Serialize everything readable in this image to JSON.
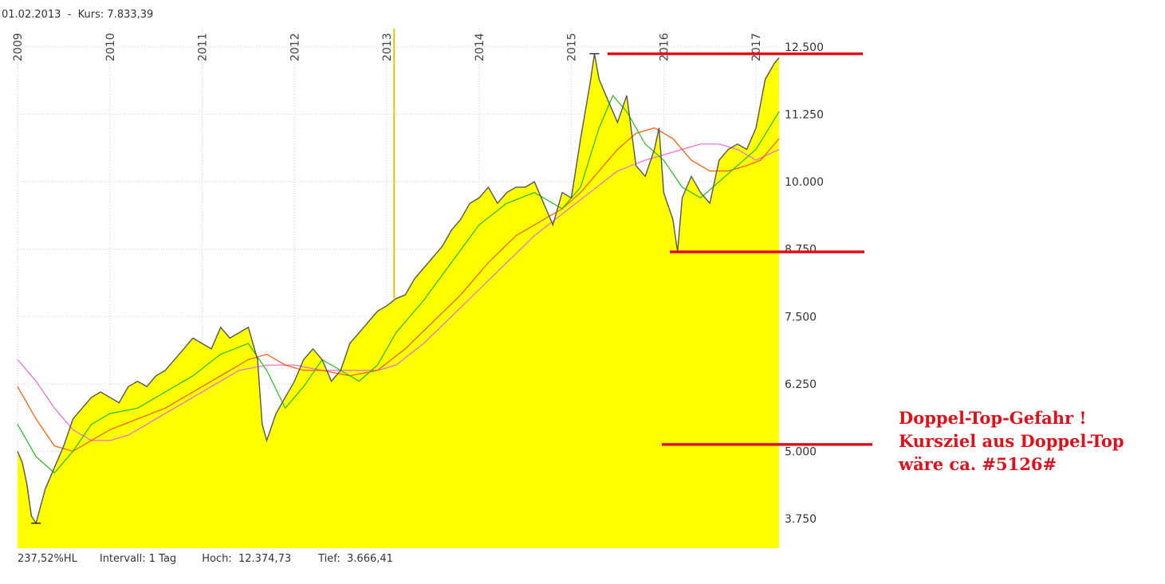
{
  "header": {
    "date": "01.02.2013",
    "separator": "-",
    "price_label": "Kurs: 7.833,39"
  },
  "footer": {
    "range": "237,52%HL",
    "interval": "Intervall: 1 Tag",
    "high": "Hoch:  12.374,73",
    "low": "Tief:  3.666,41"
  },
  "annotation": {
    "line1": "Doppel-Top-Gefahr !",
    "line2": "Kursziel aus Doppel-Top",
    "line3": "wäre ca. #5126#"
  },
  "colors": {
    "area_fill": "#ffff00",
    "price_line": "#555555",
    "ma_short": "#22bb22",
    "ma_mid": "#ff5500",
    "ma_long": "#ee66dd",
    "marker_line": "#e8c400",
    "annotation_lines": "#e0101a"
  },
  "chart_data": {
    "type": "area",
    "x_tick_labels": [
      "2009",
      "2010",
      "2011",
      "2012",
      "2013",
      "2014",
      "2015",
      "2016",
      "2017"
    ],
    "x_tick_years": [
      2009.0,
      2010.0,
      2011.0,
      2012.0,
      2013.0,
      2014.0,
      2015.0,
      2016.0,
      2017.0
    ],
    "y_tick_labels": [
      "12.500",
      "11.250",
      "10.000",
      "8.750",
      "7.500",
      "6.250",
      "5.000",
      "3.750"
    ],
    "y_tick_values": [
      12500,
      11250,
      10000,
      8750,
      7500,
      6250,
      5000,
      3750
    ],
    "xlim": [
      2009.0,
      2017.25
    ],
    "ylim": [
      3200,
      13000
    ],
    "grid": true,
    "marker_date": 2013.08,
    "series": [
      {
        "key": "price",
        "x": [
          2009.0,
          2009.05,
          2009.1,
          2009.15,
          2009.2,
          2009.3,
          2009.4,
          2009.5,
          2009.6,
          2009.7,
          2009.8,
          2009.9,
          2010.0,
          2010.1,
          2010.2,
          2010.3,
          2010.4,
          2010.5,
          2010.6,
          2010.7,
          2010.8,
          2010.9,
          2011.0,
          2011.1,
          2011.2,
          2011.3,
          2011.4,
          2011.5,
          2011.6,
          2011.65,
          2011.7,
          2011.8,
          2011.9,
          2012.0,
          2012.1,
          2012.2,
          2012.3,
          2012.4,
          2012.5,
          2012.6,
          2012.7,
          2012.8,
          2012.9,
          2013.0,
          2013.1,
          2013.2,
          2013.3,
          2013.4,
          2013.5,
          2013.6,
          2013.7,
          2013.8,
          2013.9,
          2014.0,
          2014.1,
          2014.2,
          2014.3,
          2014.4,
          2014.5,
          2014.6,
          2014.7,
          2014.8,
          2014.9,
          2015.0,
          2015.1,
          2015.2,
          2015.25,
          2015.3,
          2015.4,
          2015.5,
          2015.6,
          2015.7,
          2015.8,
          2015.9,
          2015.95,
          2016.0,
          2016.1,
          2016.15,
          2016.2,
          2016.3,
          2016.4,
          2016.5,
          2016.6,
          2016.7,
          2016.8,
          2016.9,
          2017.0,
          2017.1,
          2017.2,
          2017.25
        ],
        "values": [
          5000,
          4800,
          4400,
          3800,
          3666,
          4300,
          4700,
          5100,
          5600,
          5800,
          6000,
          6100,
          6000,
          5900,
          6200,
          6300,
          6200,
          6400,
          6500,
          6700,
          6900,
          7100,
          7000,
          6900,
          7300,
          7100,
          7200,
          7300,
          6700,
          5500,
          5200,
          5700,
          6000,
          6300,
          6700,
          6900,
          6700,
          6300,
          6500,
          7000,
          7200,
          7400,
          7600,
          7700,
          7833,
          7900,
          8200,
          8400,
          8600,
          8800,
          9100,
          9300,
          9600,
          9700,
          9900,
          9600,
          9800,
          9900,
          9900,
          10000,
          9600,
          9200,
          9800,
          9700,
          10800,
          11800,
          12375,
          11900,
          11500,
          11100,
          11600,
          10300,
          10100,
          10600,
          11000,
          9800,
          9300,
          8700,
          9700,
          10100,
          9800,
          9600,
          10400,
          10600,
          10700,
          10600,
          11000,
          11900,
          12200,
          12300
        ]
      },
      {
        "key": "ma_short",
        "x": [
          2009.0,
          2009.2,
          2009.4,
          2009.6,
          2009.8,
          2010.0,
          2010.3,
          2010.6,
          2010.9,
          2011.2,
          2011.5,
          2011.7,
          2011.9,
          2012.1,
          2012.3,
          2012.5,
          2012.7,
          2012.9,
          2013.1,
          2013.4,
          2013.7,
          2014.0,
          2014.3,
          2014.6,
          2014.9,
          2015.1,
          2015.3,
          2015.45,
          2015.6,
          2015.8,
          2016.0,
          2016.2,
          2016.4,
          2016.6,
          2016.8,
          2017.0,
          2017.25
        ],
        "values": [
          5500,
          4900,
          4600,
          5000,
          5500,
          5700,
          5800,
          6100,
          6400,
          6800,
          7000,
          6500,
          5800,
          6200,
          6700,
          6500,
          6300,
          6600,
          7200,
          7800,
          8500,
          9200,
          9600,
          9800,
          9500,
          9900,
          11000,
          11600,
          11300,
          10700,
          10400,
          9900,
          9700,
          10000,
          10300,
          10600,
          11300
        ]
      },
      {
        "key": "ma_mid",
        "x": [
          2009.0,
          2009.2,
          2009.4,
          2009.6,
          2009.8,
          2010.0,
          2010.3,
          2010.6,
          2010.9,
          2011.2,
          2011.5,
          2011.7,
          2011.9,
          2012.1,
          2012.3,
          2012.6,
          2012.9,
          2013.2,
          2013.5,
          2013.8,
          2014.1,
          2014.4,
          2014.7,
          2014.9,
          2015.1,
          2015.3,
          2015.5,
          2015.7,
          2015.9,
          2016.1,
          2016.3,
          2016.5,
          2016.7,
          2016.9,
          2017.05,
          2017.25
        ],
        "values": [
          6200,
          5600,
          5100,
          5000,
          5200,
          5400,
          5600,
          5800,
          6100,
          6400,
          6700,
          6800,
          6600,
          6500,
          6500,
          6400,
          6500,
          6900,
          7400,
          7900,
          8500,
          9000,
          9300,
          9500,
          9800,
          10200,
          10600,
          10900,
          11000,
          10800,
          10400,
          10200,
          10200,
          10300,
          10400,
          10800
        ]
      },
      {
        "key": "ma_long",
        "x": [
          2009.0,
          2009.2,
          2009.4,
          2009.6,
          2009.8,
          2010.0,
          2010.2,
          2010.5,
          2010.8,
          2011.1,
          2011.4,
          2011.7,
          2012.0,
          2012.3,
          2012.6,
          2012.9,
          2013.1,
          2013.4,
          2013.7,
          2014.0,
          2014.3,
          2014.6,
          2014.9,
          2015.2,
          2015.5,
          2015.8,
          2016.0,
          2016.2,
          2016.4,
          2016.6,
          2016.8,
          2017.0,
          2017.25
        ],
        "values": [
          6700,
          6300,
          5800,
          5400,
          5200,
          5200,
          5300,
          5600,
          5900,
          6200,
          6500,
          6600,
          6600,
          6500,
          6500,
          6500,
          6600,
          7000,
          7500,
          8000,
          8500,
          9000,
          9400,
          9800,
          10200,
          10400,
          10500,
          10600,
          10700,
          10700,
          10600,
          10400,
          10600
        ]
      }
    ]
  }
}
